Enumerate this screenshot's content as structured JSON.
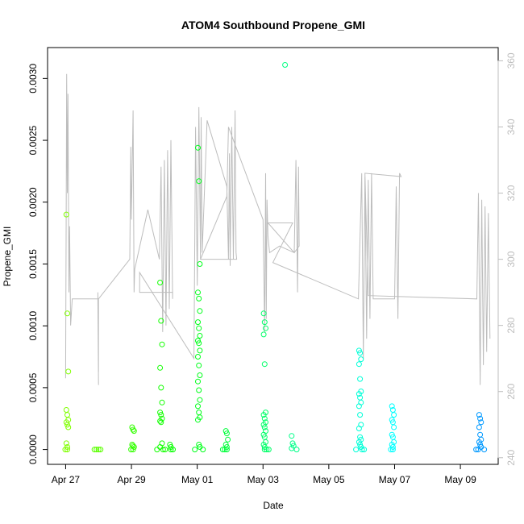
{
  "chart_data": {
    "type": "scatter",
    "title": "ATOM4 Southbound Propene_GMI",
    "xlabel": "Date",
    "ylabel": "Propene_GMI",
    "x_ticks": [
      "Apr 27",
      "Apr 29",
      "May 01",
      "May 03",
      "May 05",
      "May 07",
      "May 09"
    ],
    "x_tick_days": [
      0,
      2,
      4,
      6,
      8,
      10,
      12
    ],
    "xlim_days": [
      -0.55,
      13.15
    ],
    "y_ticks": [
      "0.0000",
      "0.0005",
      "0.0010",
      "0.0015",
      "0.0020",
      "0.0025",
      "0.0030"
    ],
    "y_tick_values": [
      0,
      0.0005,
      0.001,
      0.0015,
      0.002,
      0.0025,
      0.003
    ],
    "ylim": [
      -0.00012,
      0.00325
    ],
    "y2_ticks": [
      "240",
      "260",
      "280",
      "300",
      "320",
      "340",
      "360"
    ],
    "y2_tick_values": [
      240,
      260,
      280,
      300,
      320,
      340,
      360
    ],
    "y2lim": [
      238,
      364
    ],
    "grid": false,
    "point_colors": {
      "first": "#80ff00",
      "last": "#0099ff"
    },
    "line_color": "#bdbdbd",
    "points": [
      {
        "x": 0.05,
        "y": [
          0.0019,
          0.0011,
          0.00063,
          0.00032,
          0.00028,
          0.00024,
          0.00022,
          0.0002,
          0.00018,
          5e-05,
          2e-05,
          0.0,
          0.0
        ]
      },
      {
        "x": 1.0,
        "y": [
          0.0,
          0.0,
          0.0,
          0.0
        ]
      },
      {
        "x": 2.05,
        "y": [
          0.00018,
          0.00016,
          0.00015,
          4e-05,
          3e-05,
          2e-05,
          0.0,
          0.0
        ]
      },
      {
        "x": 2.9,
        "y": [
          0.00135,
          0.00104,
          0.00085,
          0.00066,
          0.0005,
          0.00038,
          0.0003,
          0.00028,
          0.00025,
          0.00023,
          0.00022,
          5e-05,
          2e-05,
          0.0,
          0.0,
          0.0
        ]
      },
      {
        "x": 3.2,
        "y": [
          4e-05,
          2e-05,
          0.0,
          0.0
        ]
      },
      {
        "x": 4.05,
        "y": [
          0.00244,
          0.00217,
          0.0015,
          0.00127,
          0.00122,
          0.00112,
          0.00103,
          0.00098,
          0.00092,
          0.00088,
          0.00086,
          0.0008,
          0.00075,
          0.00068,
          0.0006,
          0.00055,
          0.00048,
          0.0004,
          0.00035,
          0.0003,
          0.00026,
          0.00024,
          4e-05,
          2e-05,
          0.0,
          0.0
        ]
      },
      {
        "x": 4.9,
        "y": [
          0.00015,
          0.00013,
          8e-05,
          4e-05,
          2e-05,
          0.0,
          0.0,
          0.0
        ]
      },
      {
        "x": 6.05,
        "y": [
          0.0011,
          0.00103,
          0.00098,
          0.00093,
          0.00069,
          0.0003,
          0.00028,
          0.00025,
          0.00022,
          0.0002,
          0.00018,
          0.00015,
          0.00012,
          0.0001,
          6e-05,
          4e-05,
          2e-05,
          0.0,
          0.0,
          0.0
        ]
      },
      {
        "x": 6.7,
        "y": [
          0.00311
        ]
      },
      {
        "x": 6.9,
        "y": [
          0.00011,
          5e-05,
          3e-05,
          1e-05,
          0.0
        ]
      },
      {
        "x": 8.95,
        "y": [
          0.0008,
          0.00078,
          0.00073,
          0.00069,
          0.00057,
          0.00047,
          0.00045,
          0.00042,
          0.00038,
          0.00035,
          0.00028,
          0.0002,
          0.00017,
          0.0001,
          8e-05,
          6e-05,
          4e-05,
          2e-05,
          0.0,
          0.0,
          0.0
        ]
      },
      {
        "x": 9.95,
        "y": [
          0.00035,
          0.00032,
          0.00028,
          0.00024,
          0.00022,
          0.00018,
          0.00012,
          0.0001,
          6e-05,
          4e-05,
          2e-05,
          0.0,
          0.0
        ]
      },
      {
        "x": 12.6,
        "y": [
          0.00028,
          0.00025,
          0.00022,
          0.00018,
          0.00012,
          8e-05,
          6e-05,
          4e-05,
          2e-05,
          0.0,
          0.0,
          0.0
        ]
      }
    ],
    "secondary_line": [
      [
        0.0,
        264
      ],
      [
        0.03,
        356
      ],
      [
        0.05,
        320
      ],
      [
        0.07,
        350
      ],
      [
        0.1,
        290
      ],
      [
        0.12,
        310
      ],
      [
        0.15,
        280
      ],
      [
        0.2,
        288
      ],
      [
        0.98,
        288
      ],
      [
        1.0,
        262
      ],
      [
        0.98,
        290
      ],
      [
        1.0,
        266
      ],
      [
        1.0,
        288
      ],
      [
        1.95,
        300
      ],
      [
        1.98,
        334
      ],
      [
        2.0,
        312
      ],
      [
        2.05,
        345
      ],
      [
        2.08,
        290
      ],
      [
        2.1,
        297
      ],
      [
        2.5,
        315
      ],
      [
        2.85,
        300
      ],
      [
        2.9,
        328
      ],
      [
        2.95,
        278
      ],
      [
        3.0,
        330
      ],
      [
        3.05,
        280
      ],
      [
        3.1,
        333
      ],
      [
        3.15,
        285
      ],
      [
        3.2,
        336
      ],
      [
        3.25,
        288
      ],
      [
        3.25,
        290
      ],
      [
        2.25,
        290
      ],
      [
        2.25,
        296
      ],
      [
        3.9,
        270
      ],
      [
        3.95,
        340
      ],
      [
        4.0,
        292
      ],
      [
        4.05,
        346
      ],
      [
        4.1,
        300
      ],
      [
        4.12,
        343
      ],
      [
        4.15,
        302
      ],
      [
        4.3,
        342
      ],
      [
        4.9,
        322
      ],
      [
        4.95,
        300
      ],
      [
        4.98,
        332
      ],
      [
        5.0,
        298
      ],
      [
        5.05,
        340
      ],
      [
        5.1,
        300
      ],
      [
        5.15,
        345
      ],
      [
        5.18,
        302
      ],
      [
        5.2,
        300
      ],
      [
        4.1,
        300
      ],
      [
        4.9,
        319
      ],
      [
        4.95,
        340
      ],
      [
        6.0,
        312
      ],
      [
        6.05,
        278
      ],
      [
        6.08,
        326
      ],
      [
        6.1,
        282
      ],
      [
        6.12,
        318
      ],
      [
        6.15,
        307
      ],
      [
        6.2,
        302
      ],
      [
        6.5,
        304
      ],
      [
        6.95,
        302
      ],
      [
        7.0,
        330
      ],
      [
        7.05,
        290
      ],
      [
        7.08,
        328
      ],
      [
        7.1,
        304
      ],
      [
        6.95,
        302
      ],
      [
        6.15,
        311
      ],
      [
        6.9,
        311
      ],
      [
        6.3,
        299
      ],
      [
        8.9,
        288
      ],
      [
        9.0,
        326
      ],
      [
        9.05,
        270
      ],
      [
        9.1,
        325
      ],
      [
        9.15,
        276
      ],
      [
        9.2,
        324
      ],
      [
        9.25,
        282
      ],
      [
        9.3,
        326
      ],
      [
        9.35,
        288
      ],
      [
        10.0,
        288
      ],
      [
        10.05,
        322
      ],
      [
        10.1,
        282
      ],
      [
        10.15,
        326
      ],
      [
        10.2,
        325
      ],
      [
        9.1,
        326
      ],
      [
        9.1,
        326
      ],
      [
        9.2,
        289
      ],
      [
        12.5,
        288
      ],
      [
        12.55,
        320
      ],
      [
        12.6,
        262
      ],
      [
        12.65,
        318
      ],
      [
        12.7,
        268
      ],
      [
        12.75,
        316
      ],
      [
        12.8,
        272
      ],
      [
        12.85,
        314
      ],
      [
        12.9,
        276
      ]
    ]
  }
}
